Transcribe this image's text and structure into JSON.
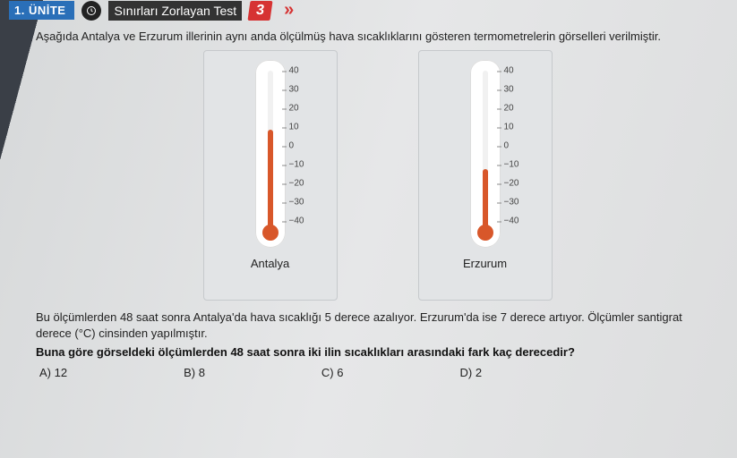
{
  "header": {
    "unit_label": "1. ÜNİTE",
    "test_title": "Sınırları Zorlayan Test",
    "test_number": "3",
    "arrows": "»"
  },
  "intro": "Aşağıda Antalya ve Erzurum illerinin aynı anda ölçülmüş hava sıcaklıklarını gösteren termometrelerin görselleri verilmiştir.",
  "thermometer": {
    "ticks": [
      "40",
      "30",
      "20",
      "10",
      "0",
      "−10",
      "−20",
      "−30",
      "−40"
    ],
    "antalya": {
      "label": "Antalya",
      "value_c": 10,
      "fill_pct": 62.5
    },
    "erzurum": {
      "label": "Erzurum",
      "value_c": -10,
      "fill_pct": 37.5
    },
    "fill_color": "#d8572a",
    "card_bg": "#e2e4e6"
  },
  "paragraph": "Bu ölçümlerden 48 saat sonra Antalya'da hava sıcaklığı 5 derece azalıyor. Erzurum'da ise 7 derece artıyor. Ölçümler santigrat derece (°C) cinsinden yapılmıştır.",
  "question": "Buna göre görseldeki ölçümlerden 48 saat sonra iki ilin sıcaklıkları arasındaki fark kaç derecedir?",
  "options": {
    "a": "A)  12",
    "b": "B)  8",
    "c": "C)  6",
    "d": "D)  2"
  }
}
